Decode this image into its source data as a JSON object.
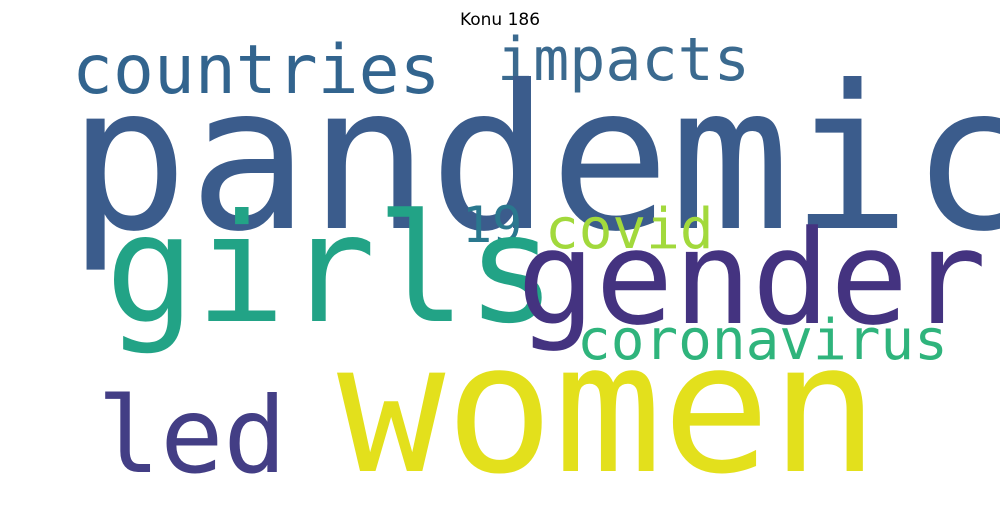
{
  "figure": {
    "title": "Konu 186"
  },
  "wordcloud": {
    "words": [
      {
        "key": "pandemic",
        "text": "pandemic",
        "color": "#3b5c8c"
      },
      {
        "key": "women",
        "text": "women",
        "color": "#e3e01c"
      },
      {
        "key": "girls",
        "text": "girls",
        "color": "#22a386"
      },
      {
        "key": "gender",
        "text": "gender",
        "color": "#443380"
      },
      {
        "key": "countries",
        "text": "countries",
        "color": "#32648e"
      },
      {
        "key": "impacts",
        "text": "impacts",
        "color": "#3b6a8f"
      },
      {
        "key": "coronavirus",
        "text": "coronavirus",
        "color": "#2fb47c"
      },
      {
        "key": "led",
        "text": "led",
        "color": "#433e85"
      },
      {
        "key": "covid",
        "text": "covid",
        "color": "#a2d93c"
      },
      {
        "key": "19",
        "text": "19",
        "color": "#2a788e"
      }
    ]
  }
}
